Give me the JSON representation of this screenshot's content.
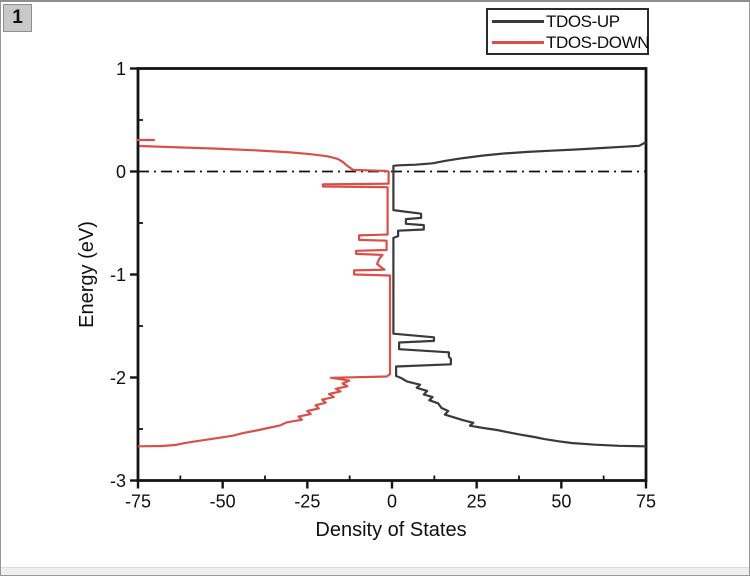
{
  "ui": {
    "page_badge": "1",
    "legend": {
      "entries": [
        {
          "label": "TDOS-UP",
          "color": "#3a3a3a"
        },
        {
          "label": "TDOS-DOWN",
          "color": "#d9504a"
        }
      ]
    }
  },
  "chart_data": {
    "type": "line",
    "title": "",
    "xlabel": "Density of States",
    "ylabel": "Energy (eV)",
    "xlim": [
      -75,
      75
    ],
    "ylim": [
      -3,
      1
    ],
    "x_ticks": [
      -75,
      -50,
      -25,
      0,
      25,
      50,
      75
    ],
    "x_tick_labels": [
      "-75",
      "-50",
      "-25",
      "0",
      "25",
      "50",
      "75"
    ],
    "x_minor_ticks": [
      -62.5,
      -37.5,
      -12.5,
      12.5,
      37.5,
      62.5
    ],
    "y_ticks": [
      1,
      0,
      -1,
      -2,
      -3
    ],
    "y_tick_labels": [
      "1",
      "0",
      "-1",
      "-2",
      "-3"
    ],
    "y_minor_ticks": [
      0.5,
      -0.5,
      -1.5,
      -2.5
    ],
    "grid": false,
    "legend_position": "top-right-outside",
    "orientation": "x=DOS, y=Energy(eV)",
    "fermi_line": {
      "energy": 0,
      "style": "dash-dot",
      "color": "#101010"
    },
    "point_format": "[dos, energy_eV]",
    "series": [
      {
        "name": "TDOS-UP",
        "color": "#3a3a3a",
        "paths": [
          [
            [
              75,
              0.285
            ],
            [
              73,
              0.25
            ],
            [
              68,
              0.24
            ],
            [
              62,
              0.228
            ],
            [
              55,
              0.215
            ],
            [
              47,
              0.202
            ],
            [
              40,
              0.19
            ],
            [
              33,
              0.175
            ],
            [
              27,
              0.155
            ],
            [
              21,
              0.13
            ],
            [
              16,
              0.105
            ],
            [
              12,
              0.08
            ],
            [
              7,
              0.066
            ],
            [
              2,
              0.06
            ],
            [
              0.4,
              0.055
            ],
            [
              0.4,
              -0.375
            ],
            [
              8.6,
              -0.41
            ],
            [
              8.6,
              -0.45
            ],
            [
              4.1,
              -0.462
            ],
            [
              4.1,
              -0.508
            ],
            [
              9.4,
              -0.52
            ],
            [
              9.4,
              -0.563
            ],
            [
              1.8,
              -0.575
            ],
            [
              1.8,
              -0.627
            ],
            [
              0.4,
              -0.645
            ],
            [
              0.4,
              -1.575
            ],
            [
              12.4,
              -1.61
            ],
            [
              12.4,
              -1.645
            ],
            [
              2.1,
              -1.66
            ],
            [
              2.1,
              -1.725
            ],
            [
              16.8,
              -1.755
            ],
            [
              16.8,
              -1.798
            ],
            [
              17.4,
              -1.82
            ],
            [
              17.4,
              -1.872
            ],
            [
              1.2,
              -1.893
            ],
            [
              1.2,
              -1.985
            ],
            [
              2.7,
              -2.005
            ],
            [
              4.5,
              -2.04
            ],
            [
              8.3,
              -2.07
            ],
            [
              7.3,
              -2.1
            ],
            [
              10.4,
              -2.13
            ],
            [
              9.4,
              -2.165
            ],
            [
              12,
              -2.19
            ],
            [
              11,
              -2.22
            ],
            [
              13.6,
              -2.25
            ],
            [
              14.6,
              -2.295
            ],
            [
              16.6,
              -2.325
            ],
            [
              15.6,
              -2.36
            ],
            [
              18.6,
              -2.39
            ],
            [
              21,
              -2.415
            ],
            [
              24,
              -2.44
            ],
            [
              23,
              -2.468
            ],
            [
              27,
              -2.49
            ],
            [
              31,
              -2.51
            ],
            [
              34,
              -2.53
            ],
            [
              38,
              -2.555
            ],
            [
              42,
              -2.578
            ],
            [
              45,
              -2.598
            ],
            [
              49,
              -2.618
            ],
            [
              53,
              -2.636
            ],
            [
              60,
              -2.652
            ],
            [
              67,
              -2.663
            ],
            [
              75,
              -2.668
            ]
          ]
        ]
      },
      {
        "name": "TDOS-DOWN",
        "color": "#d9504a",
        "paths": [
          [
            [
              -74.6,
              0.248
            ],
            [
              -65,
              0.237
            ],
            [
              -52,
              0.222
            ],
            [
              -40,
              0.205
            ],
            [
              -30,
              0.185
            ],
            [
              -24,
              0.168
            ],
            [
              -19,
              0.148
            ],
            [
              -16,
              0.122
            ],
            [
              -14.5,
              0.092
            ],
            [
              -13.5,
              0.062
            ],
            [
              -12.2,
              0.032
            ],
            [
              -11.5,
              0.016
            ],
            [
              -2,
              0.006
            ],
            [
              -1,
              0
            ],
            [
              -1,
              -0.118
            ],
            [
              -20.4,
              -0.124
            ],
            [
              -20.4,
              -0.146
            ],
            [
              -1.3,
              -0.152
            ],
            [
              -1.3,
              -0.612
            ],
            [
              -9.7,
              -0.62
            ],
            [
              -9.7,
              -0.664
            ],
            [
              -1.6,
              -0.672
            ],
            [
              -1.6,
              -0.762
            ],
            [
              -10.6,
              -0.77
            ],
            [
              -10.6,
              -0.8
            ],
            [
              -2.8,
              -0.81
            ],
            [
              -3.8,
              -0.85
            ],
            [
              -4.4,
              -0.898
            ],
            [
              -2.8,
              -0.94
            ],
            [
              -2.2,
              -0.953
            ],
            [
              -11.2,
              -0.96
            ],
            [
              -11.2,
              -1.0
            ],
            [
              -0.6,
              -1.01
            ],
            [
              -0.6,
              -1.968
            ],
            [
              -1.6,
              -1.99
            ],
            [
              -18,
              -2.003
            ],
            [
              -12.6,
              -2.03
            ],
            [
              -14.6,
              -2.058
            ],
            [
              -13.2,
              -2.085
            ],
            [
              -16.6,
              -2.11
            ],
            [
              -15.2,
              -2.135
            ],
            [
              -18.6,
              -2.16
            ],
            [
              -17.2,
              -2.19
            ],
            [
              -20.6,
              -2.215
            ],
            [
              -19.6,
              -2.245
            ],
            [
              -22.6,
              -2.27
            ],
            [
              -21.6,
              -2.3
            ],
            [
              -25,
              -2.325
            ],
            [
              -24,
              -2.355
            ],
            [
              -27.6,
              -2.38
            ],
            [
              -26.6,
              -2.41
            ],
            [
              -31,
              -2.435
            ],
            [
              -33,
              -2.465
            ],
            [
              -36.6,
              -2.49
            ],
            [
              -40,
              -2.515
            ],
            [
              -44,
              -2.54
            ],
            [
              -47,
              -2.565
            ],
            [
              -52,
              -2.59
            ],
            [
              -57,
              -2.615
            ],
            [
              -61,
              -2.635
            ],
            [
              -64,
              -2.655
            ],
            [
              -68,
              -2.665
            ],
            [
              -75,
              -2.668
            ]
          ],
          [
            [
              -75.5,
              0.306
            ],
            [
              -70,
              0.306
            ]
          ]
        ]
      }
    ]
  }
}
